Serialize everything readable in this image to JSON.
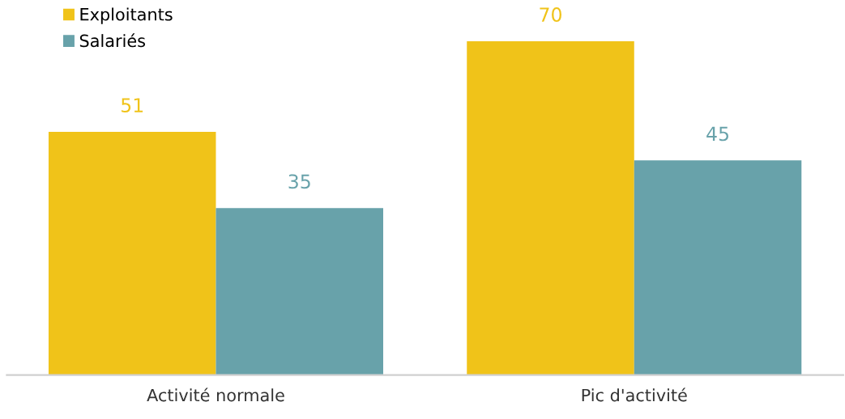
{
  "chart_data": {
    "type": "bar",
    "categories": [
      "Activité normale",
      "Pic d'activité"
    ],
    "series": [
      {
        "name": "Exploitants",
        "color": "#f0c319",
        "values": [
          51,
          70
        ]
      },
      {
        "name": "Salariés",
        "color": "#68a2aa",
        "values": [
          35,
          45
        ]
      }
    ],
    "data_labels": true,
    "legend": "top left",
    "tick_labels": "x",
    "grid": false
  }
}
